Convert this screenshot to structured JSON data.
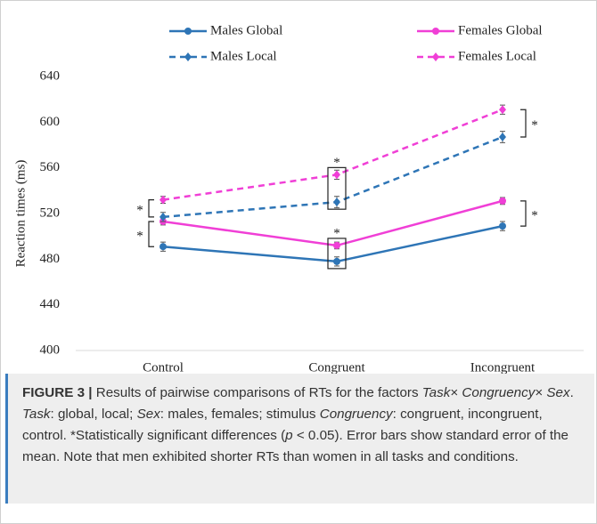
{
  "chart_data": {
    "type": "line",
    "categories": [
      "Control",
      "Congruent",
      "Incongruent"
    ],
    "y_label": "Reaction times (ms)",
    "ylim": [
      400,
      640
    ],
    "yticks": [
      400,
      440,
      480,
      520,
      560,
      600,
      640
    ],
    "series": [
      {
        "name": "Males Global",
        "color": "#2e75b6",
        "dash": false,
        "marker": "circle",
        "values": [
          491,
          478,
          509
        ],
        "errors": [
          4,
          4,
          4
        ]
      },
      {
        "name": "Females Global",
        "color": "#f03fd6",
        "dash": false,
        "marker": "circle",
        "values": [
          513,
          492,
          531
        ],
        "errors": [
          3,
          3,
          3
        ]
      },
      {
        "name": "Males Local",
        "color": "#2e75b6",
        "dash": true,
        "marker": "diamond",
        "values": [
          517,
          530,
          587
        ],
        "errors": [
          4,
          5,
          5
        ]
      },
      {
        "name": "Females Local",
        "color": "#f03fd6",
        "dash": true,
        "marker": "diamond",
        "values": [
          532,
          554,
          611
        ],
        "errors": [
          3,
          4,
          4
        ]
      }
    ],
    "annotations": [
      "*",
      "*",
      "*",
      "*",
      "*",
      "*"
    ]
  },
  "caption": {
    "label": "FIGURE 3 |",
    "parts": [
      " Results of pairwise comparisons of RTs for the factors ",
      "Task",
      "× ",
      "Congruency",
      "× ",
      "Sex",
      ". ",
      "Task",
      ": global, local; ",
      "Sex",
      ": males, females; stimulus ",
      "Congruency",
      ": congruent, incongruent, control. *Statistically significant differences (",
      "p",
      " < 0.05). Error bars show standard error of the mean. Note that men exhibited shorter RTs than women in all tasks and conditions."
    ]
  }
}
